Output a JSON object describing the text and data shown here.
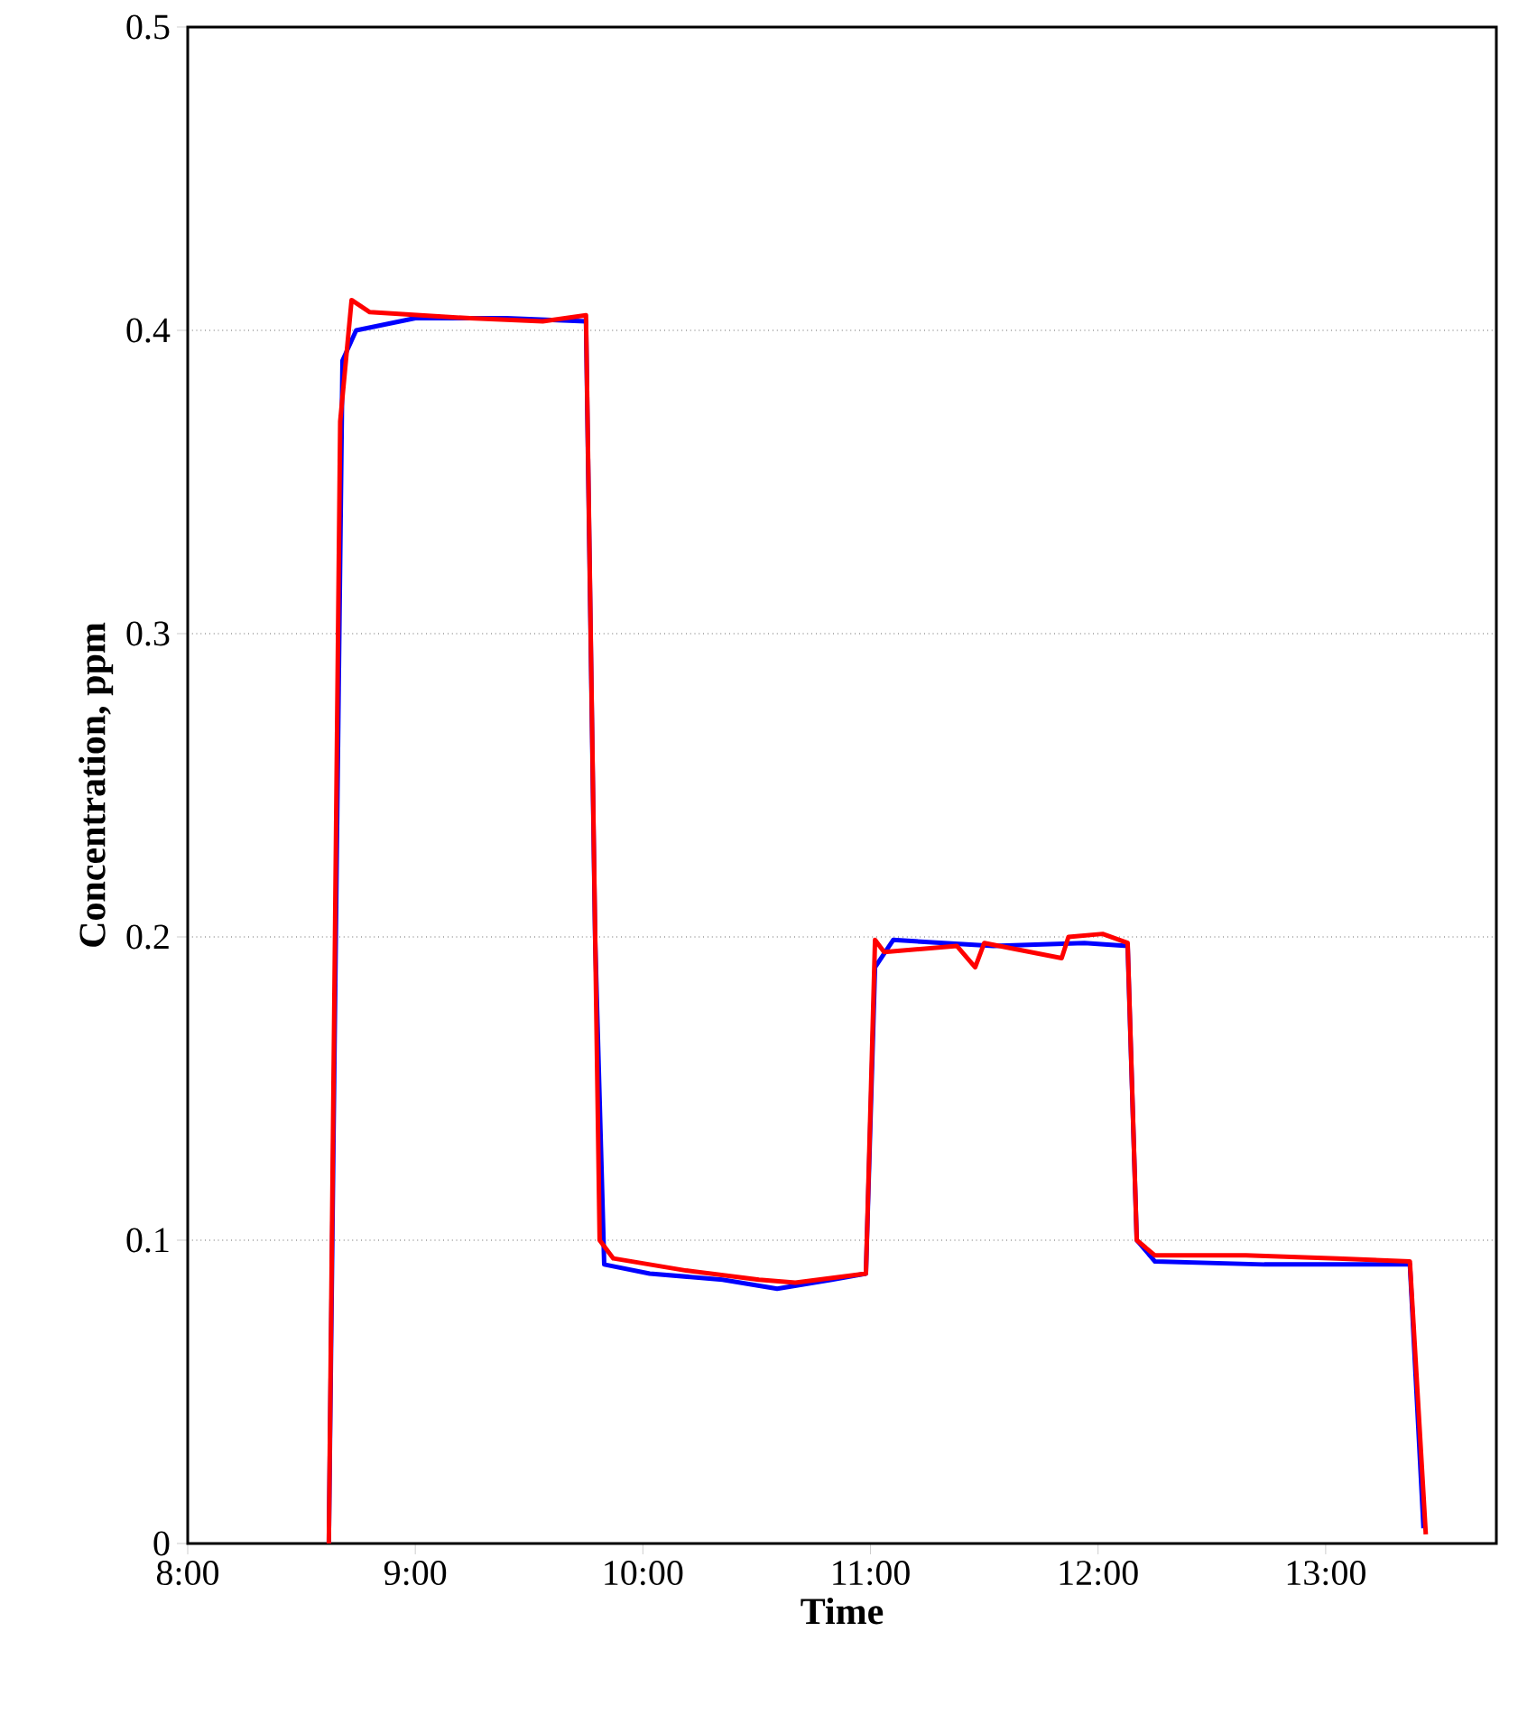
{
  "chart_data": {
    "type": "line",
    "xlabel": "Time",
    "ylabel": "Concentration, ppm",
    "xlim": [
      8,
      13.75
    ],
    "ylim": [
      0,
      0.5
    ],
    "xticks": [
      {
        "value": 8,
        "label": "8:00"
      },
      {
        "value": 9,
        "label": "9:00"
      },
      {
        "value": 10,
        "label": "10:00"
      },
      {
        "value": 11,
        "label": "11:00"
      },
      {
        "value": 12,
        "label": "12:00"
      },
      {
        "value": 13,
        "label": "13:00"
      }
    ],
    "yticks": [
      0,
      0.1,
      0.2,
      0.3,
      0.4,
      0.5
    ],
    "grid": "y",
    "marker": "none",
    "line_style": "solid",
    "series": [
      {
        "color": "#0000ff",
        "x": [
          8.62,
          8.68,
          8.74,
          9.0,
          9.4,
          9.75,
          9.79,
          9.83,
          10.03,
          10.35,
          10.59,
          10.83,
          10.98,
          11.02,
          11.1,
          11.54,
          11.94,
          12.13,
          12.17,
          12.25,
          12.73,
          13.21,
          13.37,
          13.43
        ],
        "values": [
          0,
          0.39,
          0.4,
          0.404,
          0.404,
          0.403,
          0.2,
          0.092,
          0.089,
          0.087,
          0.084,
          0.087,
          0.089,
          0.19,
          0.199,
          0.197,
          0.198,
          0.197,
          0.1,
          0.093,
          0.092,
          0.092,
          0.092,
          0.005
        ]
      },
      {
        "color": "#ff0000",
        "x": [
          8.62,
          8.67,
          8.72,
          8.8,
          9.24,
          9.56,
          9.75,
          9.81,
          9.87,
          10.19,
          10.51,
          10.67,
          10.98,
          11.02,
          11.06,
          11.38,
          11.46,
          11.5,
          11.84,
          11.87,
          12.02,
          12.13,
          12.17,
          12.25,
          12.65,
          13.05,
          13.37,
          13.44
        ],
        "values": [
          0,
          0.37,
          0.41,
          0.406,
          0.404,
          0.403,
          0.405,
          0.1,
          0.094,
          0.09,
          0.087,
          0.086,
          0.089,
          0.199,
          0.195,
          0.197,
          0.19,
          0.198,
          0.193,
          0.2,
          0.201,
          0.198,
          0.1,
          0.095,
          0.095,
          0.094,
          0.093,
          0.003
        ]
      }
    ]
  }
}
